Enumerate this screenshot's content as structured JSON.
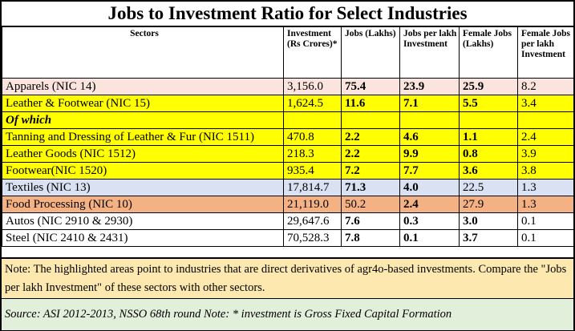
{
  "title": "Jobs to Investment Ratio for Select Industries",
  "headers": {
    "sectors": "Sectors",
    "investment": "Investment (Rs Crores)*",
    "jobs": "Jobs (Lakhs)",
    "jobs_per_lakh": "Jobs per lakh Investment",
    "female_jobs": "Female Jobs (Lakhs)",
    "female_jobs_per_lakh": "Female Jobs per lakh Investment"
  },
  "colors": {
    "apparels": "#fbe4dd",
    "leather": "#ffff00",
    "textiles": "#d9e1f2",
    "food": "#f4b183",
    "note": "#fde9b0",
    "source": "#e2efda"
  },
  "rows": {
    "apparels": {
      "sector": "Apparels (NIC 14)",
      "investment": "3,156.0",
      "jobs": "75.4",
      "jobs_per_lakh": "23.9",
      "female_jobs": "25.9",
      "female_jobs_per_lakh": "8.2"
    },
    "leather": {
      "sector": "Leather & Footwear (NIC 15)",
      "investment": "1,624.5",
      "jobs": "11.6",
      "jobs_per_lakh": "7.1",
      "female_jobs": "5.5",
      "female_jobs_per_lakh": "3.4"
    },
    "of_which": {
      "label": "Of which"
    },
    "tanning": {
      "sector": "Tanning and Dressing of Leather & Fur (NIC 1511)",
      "investment": "470.8",
      "jobs": "2.2",
      "jobs_per_lakh": "4.6",
      "female_jobs": "1.1",
      "female_jobs_per_lakh": "2.4"
    },
    "leather_goods": {
      "sector": "Leather Goods (NIC 1512)",
      "investment": "218.3",
      "jobs": "2.2",
      "jobs_per_lakh": "9.9",
      "female_jobs": "0.8",
      "female_jobs_per_lakh": "3.9"
    },
    "footwear": {
      "sector": "Footwear(NIC 1520)",
      "investment": "935.4",
      "jobs": "7.2",
      "jobs_per_lakh": "7.7",
      "female_jobs": "3.6",
      "female_jobs_per_lakh": "3.8"
    },
    "textiles": {
      "sector": "Textiles (NIC 13)",
      "investment": "17,814.7",
      "jobs": "71.3",
      "jobs_per_lakh": "4.0",
      "female_jobs": "22.5",
      "female_jobs_per_lakh": "1.3"
    },
    "food": {
      "sector": "Food Processing (NIC 10)",
      "investment": "21,119.0",
      "jobs": "50.2",
      "jobs_per_lakh": "2.4",
      "female_jobs": "27.9",
      "female_jobs_per_lakh": "1.3"
    },
    "autos": {
      "sector": "Autos (NIC 2910 & 2930)",
      "investment": "29,647.6",
      "jobs": "7.6",
      "jobs_per_lakh": "0.3",
      "female_jobs": "3.0",
      "female_jobs_per_lakh": "0.1"
    },
    "steel": {
      "sector": "Steel (NIC 2410 & 2431)",
      "investment": "70,528.3",
      "jobs": "7.8",
      "jobs_per_lakh": "0.1",
      "female_jobs": "3.7",
      "female_jobs_per_lakh": "0.1"
    }
  },
  "note": "Note:  The highlighted areas point to industries that are direct derivatives of agr4o-based investments.  Compare the \"Jobs per lakh Investment\" of these sectors with other sectors.",
  "source": "Source: ASI 2012-2013, NSSO 68th round Note: * investment is Gross Fixed Capital Formation"
}
